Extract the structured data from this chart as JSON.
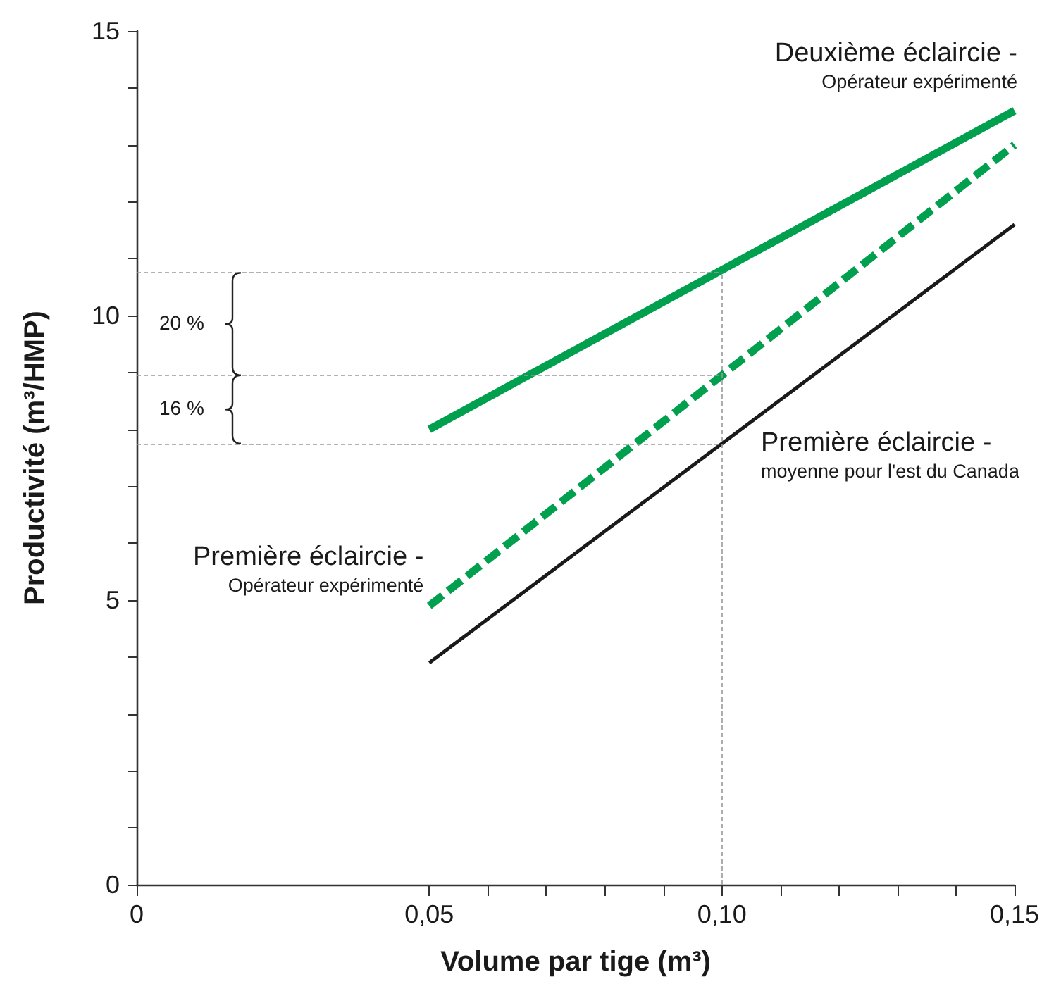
{
  "chart_data": {
    "type": "line",
    "xlabel": "Volume par tige (m³)",
    "ylabel": "Productivité (m³/HMP)",
    "xlim": [
      0,
      0.15
    ],
    "ylim": [
      0,
      15
    ],
    "xticks": [
      0,
      {
        "value": 0.05,
        "label": "0,05"
      },
      {
        "value": 0.06,
        "label": null
      },
      {
        "value": 0.07,
        "label": null
      },
      {
        "value": 0.08,
        "label": null
      },
      {
        "value": 0.09,
        "label": null
      },
      {
        "value": 0.1,
        "label": "0,10"
      },
      {
        "value": 0.11,
        "label": null
      },
      {
        "value": 0.12,
        "label": null
      },
      {
        "value": 0.13,
        "label": null
      },
      {
        "value": 0.14,
        "label": null
      },
      {
        "value": 0.15,
        "label": "0,15"
      }
    ],
    "yticks": [
      0,
      {
        "value": 1,
        "label": null
      },
      {
        "value": 2,
        "label": null
      },
      {
        "value": 3,
        "label": null
      },
      {
        "value": 4,
        "label": null
      },
      5,
      {
        "value": 6,
        "label": null
      },
      {
        "value": 7,
        "label": null
      },
      {
        "value": 8,
        "label": null
      },
      {
        "value": 9,
        "label": null
      },
      10,
      {
        "value": 11,
        "label": null
      },
      {
        "value": 12,
        "label": null
      },
      {
        "value": 13,
        "label": null
      },
      {
        "value": 14,
        "label": null
      },
      15
    ],
    "x": [
      0.05,
      0.15
    ],
    "series": [
      {
        "name": "Deuxième éclaircie -\nOpérateur expérimenté",
        "color": "#00a04f",
        "values": [
          8.0,
          13.6
        ],
        "line_style": "solid"
      },
      {
        "name": "Première éclaircie -\nOpérateur expérimenté",
        "color": "#00a04f",
        "values": [
          4.9,
          13.0
        ],
        "line_style": "dashed"
      },
      {
        "name": "Première éclaircie -\nmoyenne pour l'est du Canada",
        "color": "#1a1a1a",
        "values": [
          3.9,
          11.6
        ],
        "line_style": "solid"
      }
    ],
    "ref_lines": [
      {
        "axis": "x",
        "value": 0.1,
        "color": "#999999",
        "line_style": "dashed"
      },
      {
        "axis": "y",
        "value": 10.75,
        "color": "#999999",
        "line_style": "dashed"
      },
      {
        "axis": "y",
        "value": 8.95,
        "color": "#999999",
        "line_style": "dashed"
      },
      {
        "axis": "y",
        "value": 7.75,
        "color": "#999999",
        "line_style": "dashed"
      }
    ],
    "annotations": [
      "20 %",
      "16 %"
    ],
    "legend": false,
    "grid": false,
    "marker": "none"
  }
}
